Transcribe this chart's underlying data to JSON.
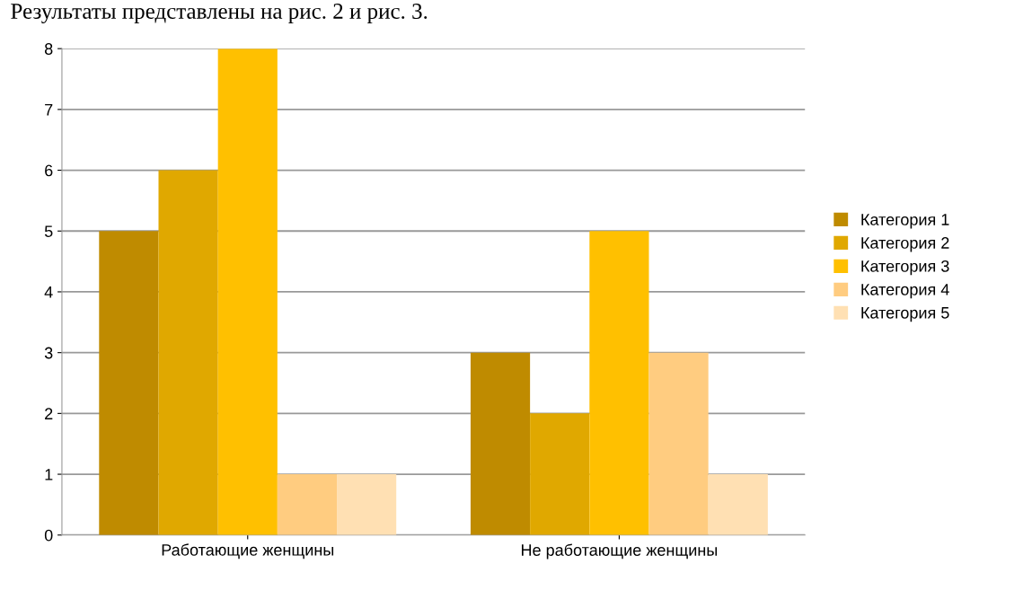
{
  "chart_data": {
    "type": "bar",
    "annotations": [
      "Результаты представлены на рис. 2 и рис. 3."
    ],
    "categories": [
      "Работающие женщины",
      "Не работающие женщины"
    ],
    "series": [
      {
        "name": "Категория 1",
        "color": "#bf8b00",
        "values": [
          5,
          3
        ]
      },
      {
        "name": "Категория 2",
        "color": "#e0a800",
        "values": [
          6,
          2
        ]
      },
      {
        "name": "Категория 3",
        "color": "#ffc000",
        "values": [
          8,
          5
        ]
      },
      {
        "name": "Категория 4",
        "color": "#ffcc80",
        "values": [
          1,
          3
        ]
      },
      {
        "name": "Категория 5",
        "color": "#ffe0b3",
        "values": [
          1,
          1
        ]
      }
    ],
    "ylim": [
      0,
      8
    ],
    "yticks": [
      0,
      1,
      2,
      3,
      4,
      5,
      6,
      7,
      8
    ],
    "grid": "y",
    "legend": "right"
  }
}
